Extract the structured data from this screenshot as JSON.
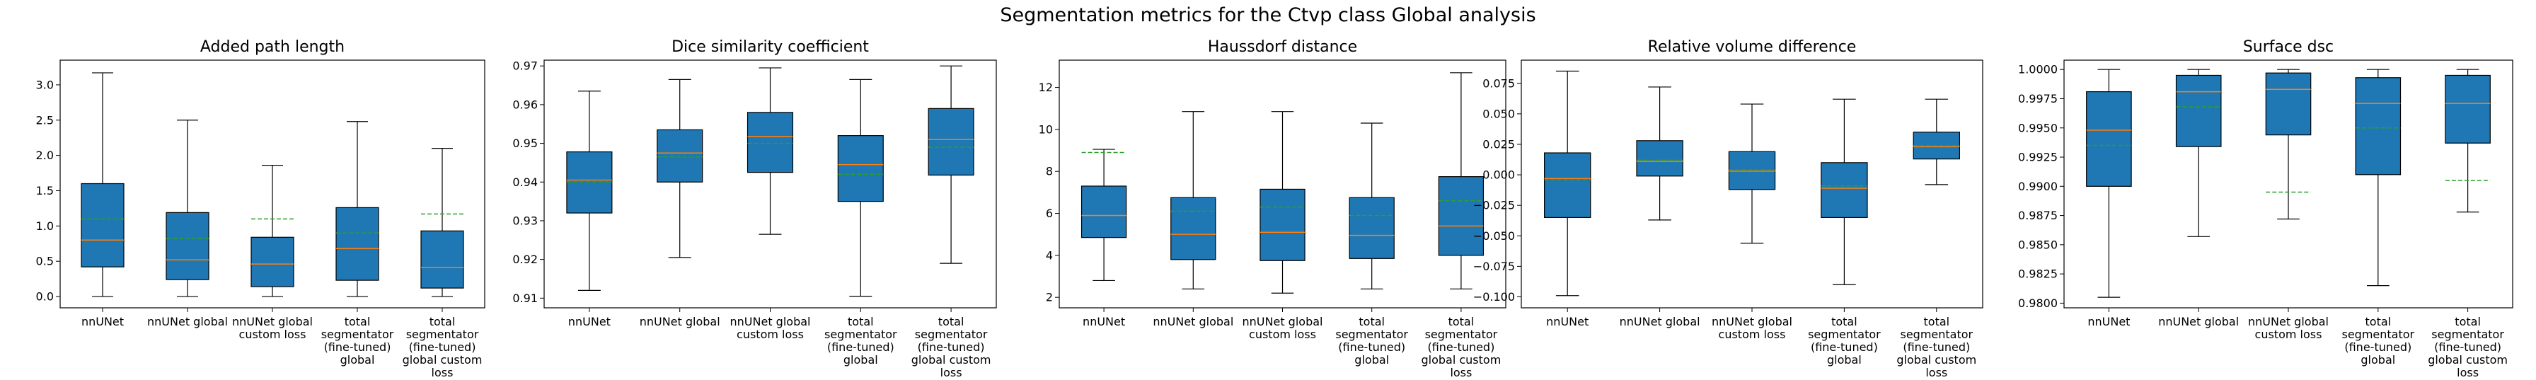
{
  "suptitle": "Segmentation metrics for the Ctvp class Global analysis",
  "colors": {
    "box": "#1f77b4",
    "median": "#ff7f0e",
    "mean": "#2ca02c"
  },
  "chart_data": [
    {
      "type": "box",
      "title": "Added path length",
      "categories": [
        "nnUNet",
        "nnUNet global",
        "nnUNet global\ncustom loss",
        "total\nsegmentator\n(fine-tuned)\nglobal",
        "total\nsegmentator\n(fine-tuned)\nglobal custom\nloss"
      ],
      "ylim": [
        -0.16,
        3.35
      ],
      "yticks": [
        0.0,
        0.5,
        1.0,
        1.5,
        2.0,
        2.5,
        3.0
      ],
      "ytick_labels": [
        "0.0",
        "0.5",
        "1.0",
        "1.5",
        "2.0",
        "2.5",
        "3.0"
      ],
      "boxes": [
        {
          "whislo": 0.0,
          "q1": 0.42,
          "med": 0.8,
          "q3": 1.6,
          "whishi": 3.17,
          "mean": 1.1
        },
        {
          "whislo": 0.0,
          "q1": 0.24,
          "med": 0.52,
          "q3": 1.19,
          "whishi": 2.5,
          "mean": 0.82
        },
        {
          "whislo": 0.0,
          "q1": 0.14,
          "med": 0.46,
          "q3": 0.84,
          "whishi": 1.86,
          "mean": 1.1
        },
        {
          "whislo": 0.0,
          "q1": 0.23,
          "med": 0.68,
          "q3": 1.26,
          "whishi": 2.48,
          "mean": 0.9
        },
        {
          "whislo": 0.0,
          "q1": 0.12,
          "med": 0.41,
          "q3": 0.93,
          "whishi": 2.1,
          "mean": 1.17
        }
      ]
    },
    {
      "type": "box",
      "title": "Dice similarity coefficient",
      "categories": [
        "nnUNet",
        "nnUNet global",
        "nnUNet global\ncustom loss",
        "total\nsegmentator\n(fine-tuned)\nglobal",
        "total\nsegmentator\n(fine-tuned)\nglobal custom\nloss"
      ],
      "ylim": [
        0.9075,
        0.9715
      ],
      "yticks": [
        0.91,
        0.92,
        0.93,
        0.94,
        0.95,
        0.96,
        0.97
      ],
      "ytick_labels": [
        "0.91",
        "0.92",
        "0.93",
        "0.94",
        "0.95",
        "0.96",
        "0.97"
      ],
      "boxes": [
        {
          "whislo": 0.912,
          "q1": 0.932,
          "med": 0.9405,
          "q3": 0.9478,
          "whishi": 0.9635,
          "mean": 0.94
        },
        {
          "whislo": 0.9205,
          "q1": 0.94,
          "med": 0.9475,
          "q3": 0.9535,
          "whishi": 0.9665,
          "mean": 0.9465
        },
        {
          "whislo": 0.9265,
          "q1": 0.9425,
          "med": 0.9518,
          "q3": 0.958,
          "whishi": 0.9695,
          "mean": 0.95
        },
        {
          "whislo": 0.9105,
          "q1": 0.935,
          "med": 0.9445,
          "q3": 0.952,
          "whishi": 0.9665,
          "mean": 0.942
        },
        {
          "whislo": 0.919,
          "q1": 0.9418,
          "med": 0.951,
          "q3": 0.959,
          "whishi": 0.97,
          "mean": 0.949
        }
      ]
    },
    {
      "type": "box",
      "title": "Haussdorf distance",
      "categories": [
        "nnUNet",
        "nnUNet global",
        "nnUNet global\ncustom loss",
        "total\nsegmentator\n(fine-tuned)\nglobal",
        "total\nsegmentator\n(fine-tuned)\nglobal custom\nloss"
      ],
      "ylim": [
        1.5,
        13.3
      ],
      "yticks": [
        2,
        4,
        6,
        8,
        10,
        12
      ],
      "ytick_labels": [
        "2",
        "4",
        "6",
        "8",
        "10",
        "12"
      ],
      "boxes": [
        {
          "whislo": 2.8,
          "q1": 4.85,
          "med": 5.9,
          "q3": 7.3,
          "whishi": 9.05,
          "mean": 8.9
        },
        {
          "whislo": 2.4,
          "q1": 3.8,
          "med": 5.0,
          "q3": 6.75,
          "whishi": 10.85,
          "mean": 6.1
        },
        {
          "whislo": 2.2,
          "q1": 3.75,
          "med": 5.1,
          "q3": 7.15,
          "whishi": 10.85,
          "mean": 6.3
        },
        {
          "whislo": 2.4,
          "q1": 3.85,
          "med": 4.95,
          "q3": 6.75,
          "whishi": 10.3,
          "mean": 5.9
        },
        {
          "whislo": 2.4,
          "q1": 4.0,
          "med": 5.4,
          "q3": 7.75,
          "whishi": 12.7,
          "mean": 6.6
        }
      ]
    },
    {
      "type": "box",
      "title": "Relative volume difference",
      "categories": [
        "nnUNet",
        "nnUNet global",
        "nnUNet global\ncustom loss",
        "total\nsegmentator\n(fine-tuned)\nglobal",
        "total\nsegmentator\n(fine-tuned)\nglobal custom\nloss"
      ],
      "ylim": [
        -0.109,
        0.094
      ],
      "yticks": [
        -0.1,
        -0.075,
        -0.05,
        -0.025,
        0.0,
        0.025,
        0.05,
        0.075
      ],
      "ytick_labels": [
        "−0.100",
        "−0.075",
        "−0.050",
        "−0.025",
        "0.000",
        "0.025",
        "0.050",
        "0.075"
      ],
      "boxes": [
        {
          "whislo": -0.099,
          "q1": -0.035,
          "med": -0.003,
          "q3": 0.018,
          "whishi": 0.085,
          "mean": -0.004
        },
        {
          "whislo": -0.037,
          "q1": -0.001,
          "med": 0.011,
          "q3": 0.028,
          "whishi": 0.072,
          "mean": 0.012
        },
        {
          "whislo": -0.056,
          "q1": -0.012,
          "med": 0.003,
          "q3": 0.019,
          "whishi": 0.058,
          "mean": 0.004
        },
        {
          "whislo": -0.09,
          "q1": -0.035,
          "med": -0.011,
          "q3": 0.01,
          "whishi": 0.062,
          "mean": -0.009
        },
        {
          "whislo": -0.008,
          "q1": 0.013,
          "med": 0.023,
          "q3": 0.035,
          "whishi": 0.062,
          "mean": 0.024
        }
      ]
    },
    {
      "type": "box",
      "title": "Surface dsc",
      "categories": [
        "nnUNet",
        "nnUNet global",
        "nnUNet global\ncustom loss",
        "total\nsegmentator\n(fine-tuned)\nglobal",
        "total\nsegmentator\n(fine-tuned)\nglobal custom\nloss"
      ],
      "ylim": [
        0.9796,
        1.0008
      ],
      "yticks": [
        0.98,
        0.9825,
        0.985,
        0.9875,
        0.99,
        0.9925,
        0.995,
        0.9975,
        1.0
      ],
      "ytick_labels": [
        "0.9800",
        "0.9825",
        "0.9850",
        "0.9875",
        "0.9900",
        "0.9925",
        "0.9950",
        "0.9975",
        "1.0000"
      ],
      "boxes": [
        {
          "whislo": 0.9805,
          "q1": 0.99,
          "med": 0.9948,
          "q3": 0.9981,
          "whishi": 1.0,
          "mean": 0.9935
        },
        {
          "whislo": 0.9857,
          "q1": 0.9934,
          "med": 0.9981,
          "q3": 0.9995,
          "whishi": 1.0,
          "mean": 0.9968
        },
        {
          "whislo": 0.9872,
          "q1": 0.9944,
          "med": 0.9983,
          "q3": 0.9997,
          "whishi": 1.0,
          "mean": 0.9895
        },
        {
          "whislo": 0.9815,
          "q1": 0.991,
          "med": 0.9971,
          "q3": 0.9993,
          "whishi": 1.0,
          "mean": 0.995
        },
        {
          "whislo": 0.9878,
          "q1": 0.9937,
          "med": 0.9971,
          "q3": 0.9995,
          "whishi": 1.0,
          "mean": 0.9905
        }
      ]
    }
  ]
}
